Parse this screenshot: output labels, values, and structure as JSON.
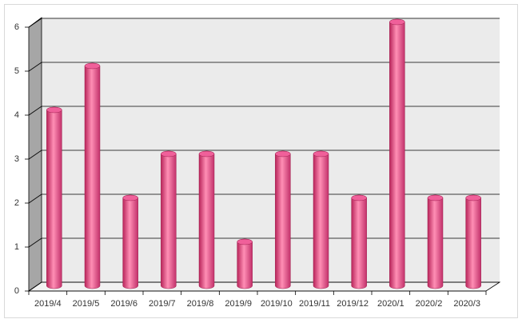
{
  "chart_data": {
    "type": "bar",
    "categories": [
      "2019/4",
      "2019/5",
      "2019/6",
      "2019/7",
      "2019/8",
      "2019/9",
      "2019/10",
      "2019/11",
      "2019/12",
      "2020/1",
      "2020/2",
      "2020/3"
    ],
    "values": [
      4,
      5,
      2,
      3,
      3,
      1,
      3,
      3,
      2,
      6,
      2,
      2
    ],
    "color": "#f0609a",
    "ylim": [
      0,
      6
    ],
    "yticks": [
      0,
      1,
      2,
      3,
      4,
      5,
      6
    ],
    "grid": true
  }
}
